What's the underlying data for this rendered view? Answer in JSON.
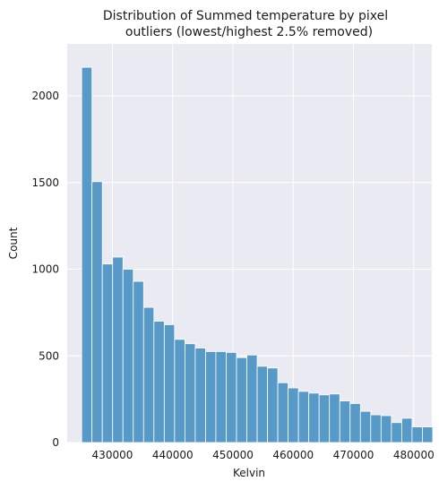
{
  "chart_data": {
    "type": "histogram",
    "title_lines": [
      "Distribution of Summed temperature by pixel",
      "outliers (lowest/highest 2.5% removed)"
    ],
    "xlabel": "Kelvin",
    "ylabel": "Count",
    "xlim": [
      422500,
      483000
    ],
    "ylim": [
      0,
      2300
    ],
    "x_ticks": [
      430000,
      440000,
      450000,
      460000,
      470000,
      480000
    ],
    "x_tick_labels": [
      "430000",
      "440000",
      "450000",
      "460000",
      "470000",
      "480000"
    ],
    "y_ticks": [
      0,
      500,
      1000,
      1500,
      2000
    ],
    "y_tick_labels": [
      "0",
      "500",
      "1000",
      "1500",
      "2000"
    ],
    "bin_start": 424900,
    "bin_width": 1713,
    "values": [
      2165,
      1505,
      1030,
      1070,
      1000,
      930,
      780,
      700,
      680,
      595,
      570,
      545,
      525,
      525,
      520,
      490,
      505,
      440,
      430,
      345,
      315,
      295,
      285,
      275,
      280,
      240,
      225,
      180,
      160,
      155,
      115,
      140,
      90,
      90
    ],
    "bar_color": "#5799c7",
    "bar_edge_color": "#ffffff",
    "background_color": "#eaeaf2",
    "grid": true,
    "grid_color": "#ffffff"
  }
}
